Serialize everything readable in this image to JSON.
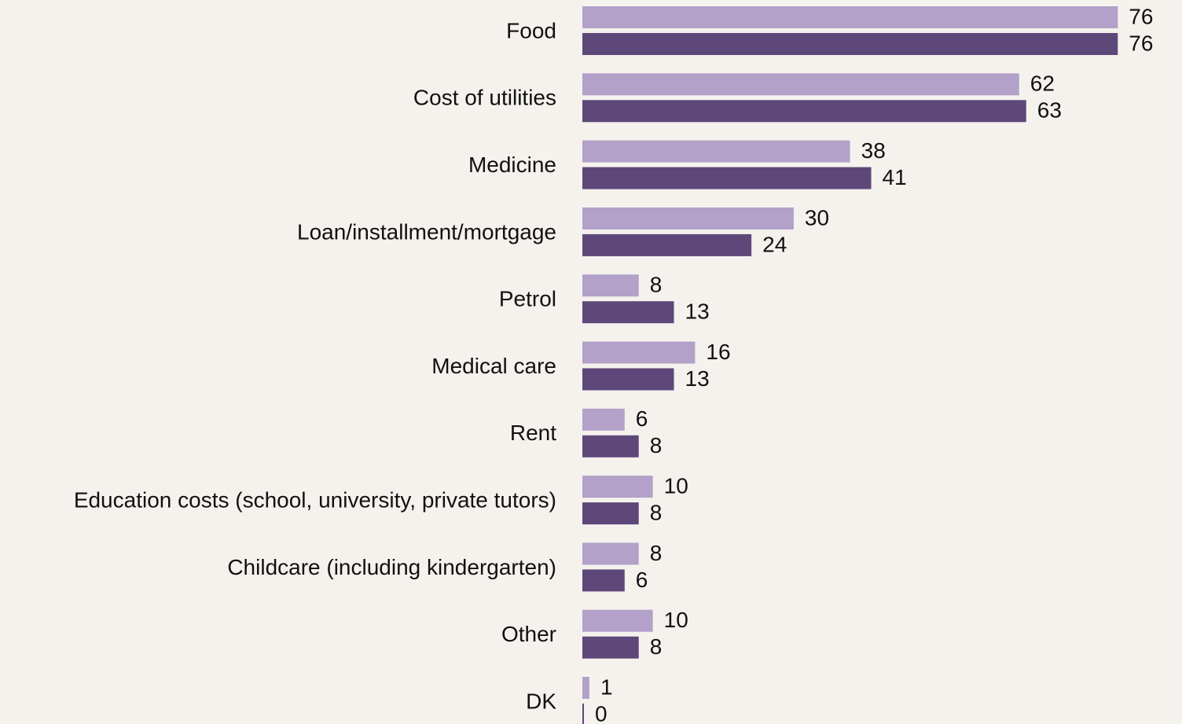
{
  "chart_data": {
    "type": "bar",
    "orientation": "horizontal",
    "categories": [
      "Food",
      "Cost of utilities",
      "Medicine",
      "Loan/installment/mortgage",
      "Petrol",
      "Medical care",
      "Rent",
      "Education costs (school, university, private tutors)",
      "Childcare (including kindergarten)",
      "Other",
      "DK"
    ],
    "series": [
      {
        "color": "#b3a1c9",
        "values": [
          76,
          62,
          38,
          30,
          8,
          16,
          6,
          10,
          8,
          10,
          1
        ]
      },
      {
        "color": "#5e4879",
        "values": [
          76,
          63,
          41,
          24,
          13,
          13,
          8,
          8,
          6,
          8,
          0
        ]
      }
    ],
    "xlim": [
      0,
      84
    ]
  }
}
